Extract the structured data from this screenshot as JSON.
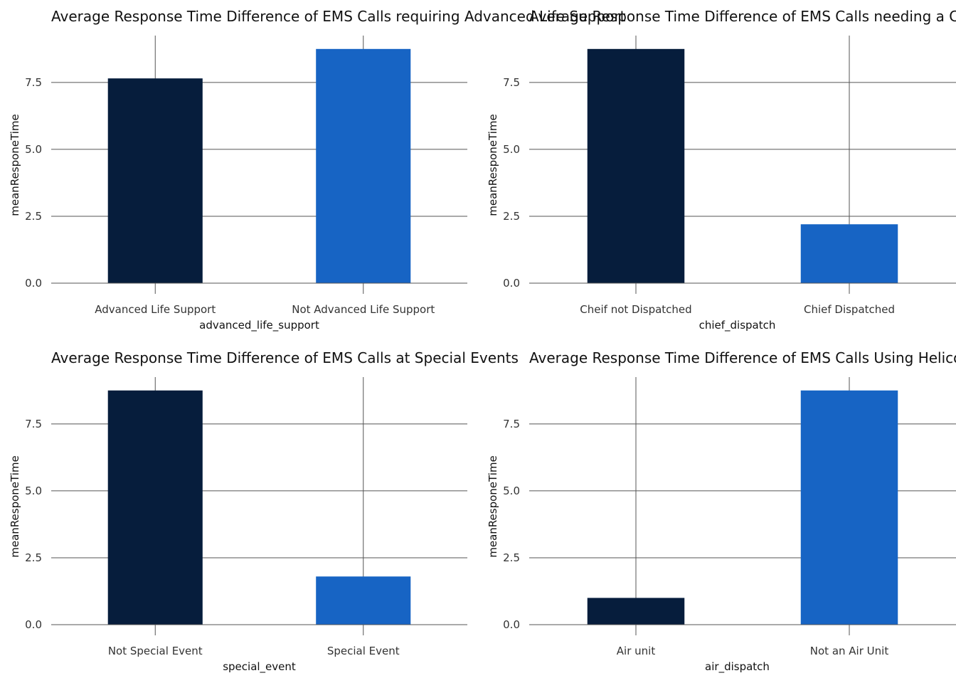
{
  "chart_data": [
    {
      "type": "bar",
      "title": "Average Response Time Difference of EMS Calls requiring Advanced Life Support",
      "xlabel": "advanced_life_support",
      "ylabel": "meanResponeTime",
      "categories": [
        "Advanced Life Support",
        "Not Advanced Life Support"
      ],
      "values": [
        7.65,
        8.75
      ],
      "colors": [
        "#061d3c",
        "#1764c4"
      ],
      "ylim": [
        0,
        9.25
      ],
      "yticks": [
        0.0,
        2.5,
        5.0,
        7.5
      ],
      "ytick_labels": [
        "0.0",
        "2.5",
        "5.0",
        "7.5"
      ],
      "grid": true,
      "legend": "none"
    },
    {
      "type": "bar",
      "title": "Average Response Time Difference of EMS Calls needing a Chief",
      "xlabel": "chief_dispatch",
      "ylabel": "meanResponeTime",
      "categories": [
        "Cheif not Dispatched",
        "Chief Dispatched"
      ],
      "values": [
        8.75,
        2.2
      ],
      "colors": [
        "#061d3c",
        "#1764c4"
      ],
      "ylim": [
        0,
        9.25
      ],
      "yticks": [
        0.0,
        2.5,
        5.0,
        7.5
      ],
      "ytick_labels": [
        "0.0",
        "2.5",
        "5.0",
        "7.5"
      ],
      "grid": true,
      "legend": "none"
    },
    {
      "type": "bar",
      "title": "Average Response Time Difference of EMS Calls at Special Events",
      "xlabel": "special_event",
      "ylabel": "meanResponeTime",
      "categories": [
        "Not Special Event",
        "Special Event"
      ],
      "values": [
        8.75,
        1.8
      ],
      "colors": [
        "#061d3c",
        "#1764c4"
      ],
      "ylim": [
        0,
        9.25
      ],
      "yticks": [
        0.0,
        2.5,
        5.0,
        7.5
      ],
      "ytick_labels": [
        "0.0",
        "2.5",
        "5.0",
        "7.5"
      ],
      "grid": true,
      "legend": "none"
    },
    {
      "type": "bar",
      "title": "Average Response Time Difference of EMS Calls Using Helicopters",
      "xlabel": "air_dispatch",
      "ylabel": "meanResponeTime",
      "categories": [
        "Air unit",
        "Not an Air Unit"
      ],
      "values": [
        1.0,
        8.75
      ],
      "colors": [
        "#061d3c",
        "#1764c4"
      ],
      "ylim": [
        0,
        9.25
      ],
      "yticks": [
        0.0,
        2.5,
        5.0,
        7.5
      ],
      "ytick_labels": [
        "0.0",
        "2.5",
        "5.0",
        "7.5"
      ],
      "grid": true,
      "legend": "none"
    }
  ]
}
